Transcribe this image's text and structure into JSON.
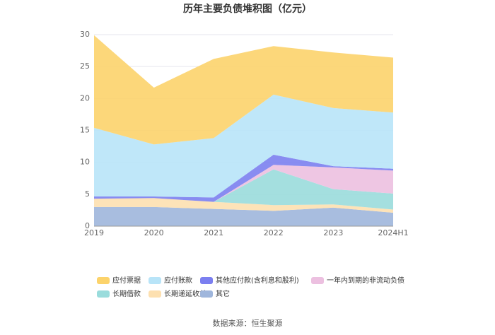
{
  "chart_data": {
    "type": "stacked_area",
    "title": "历年主要负债堆积图（亿元）",
    "source": "数据来源：恒生聚源",
    "categories": [
      "2019",
      "2020",
      "2021",
      "2022",
      "2023",
      "2024H1"
    ],
    "ylim": [
      0,
      30
    ],
    "yticks": [
      0,
      5,
      10,
      15,
      20,
      25,
      30
    ],
    "grid": true,
    "series": [
      {
        "name": "其它",
        "color": "#9fb6dc",
        "values": [
          3.0,
          3.0,
          2.7,
          2.4,
          2.9,
          2.1
        ]
      },
      {
        "name": "长期递延收益",
        "color": "#fde0b0",
        "values": [
          1.3,
          1.4,
          1.1,
          0.9,
          0.5,
          0.5
        ]
      },
      {
        "name": "长期借款",
        "color": "#9adcdc",
        "values": [
          0,
          0,
          0,
          5.6,
          2.4,
          2.5
        ]
      },
      {
        "name": "一年内到期的非流动负债",
        "color": "#ecc0e0",
        "values": [
          0,
          0,
          0,
          0.7,
          3.4,
          3.6
        ]
      },
      {
        "name": "其他应付款(含利息和股利)",
        "color": "#7b7ff0",
        "values": [
          0.35,
          0.25,
          0.7,
          1.6,
          0.2,
          0.3
        ]
      },
      {
        "name": "应付账款",
        "color": "#b8e4f8",
        "values": [
          10.75,
          8.15,
          9.3,
          9.4,
          9.1,
          8.8
        ]
      },
      {
        "name": "应付票据",
        "color": "#fcd36b",
        "values": [
          14.5,
          8.9,
          12.4,
          7.6,
          8.7,
          8.6
        ]
      }
    ]
  }
}
